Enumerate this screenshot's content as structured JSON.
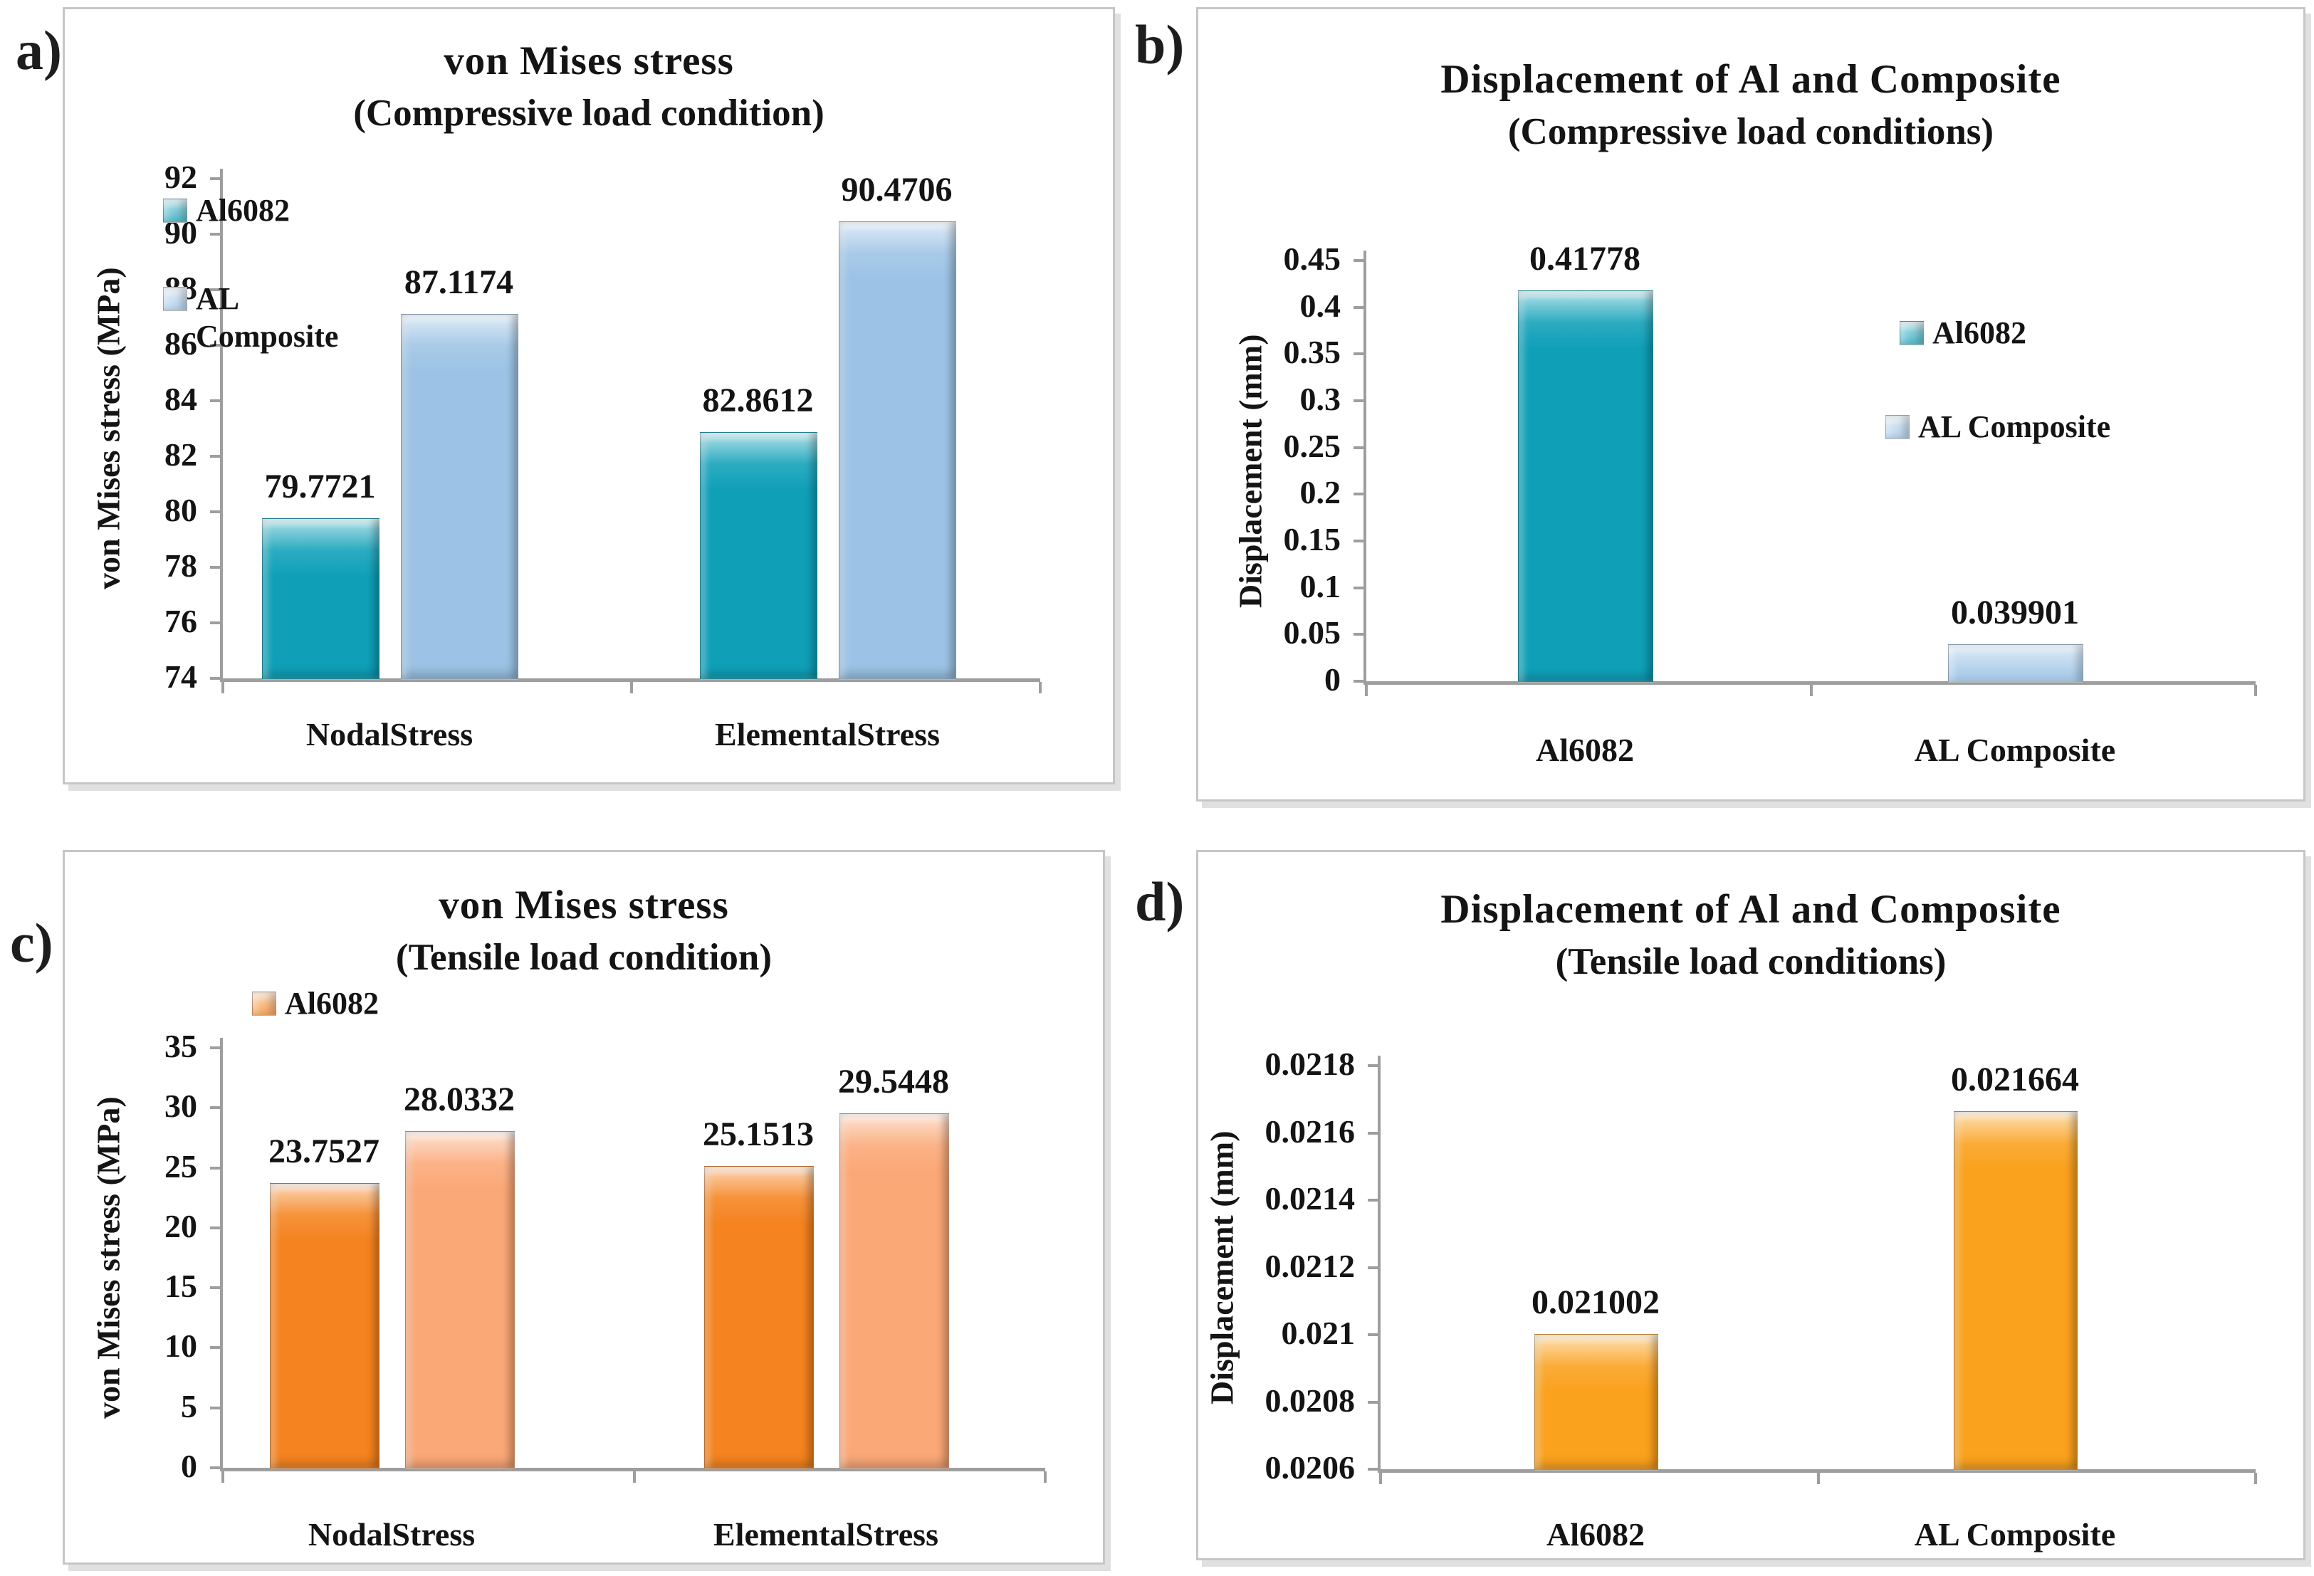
{
  "colors": {
    "teal": "#0FA0B8",
    "light_blue": "#9CC3E5",
    "orange_dark": "#F5831F",
    "orange_light": "#FBA877",
    "orange": "#FAA11D",
    "axis_gray": "#9E9E9E"
  },
  "chart_data": [
    {
      "panel_label": "a)",
      "type": "bar",
      "title": "von Mises stress",
      "subtitle": "(Compressive load condition)",
      "ylabel": "von Mises stress (MPa)",
      "xlabel": "",
      "ylim": [
        74,
        92
      ],
      "ytick_step": 2,
      "ytick_labels": [
        "74",
        "76",
        "78",
        "80",
        "82",
        "84",
        "86",
        "88",
        "90",
        "92"
      ],
      "grid": false,
      "categories": [
        "NodalStress",
        "ElementalStress"
      ],
      "series": [
        {
          "name": "Al6082",
          "color": "#0FA0B8",
          "values": [
            79.7721,
            82.8612
          ],
          "value_labels": [
            "79.7721",
            "82.8612"
          ]
        },
        {
          "name": "AL Composite",
          "color": "#9CC3E5",
          "values": [
            87.1174,
            90.4706
          ],
          "value_labels": [
            "87.1174",
            "90.4706"
          ]
        }
      ],
      "legend": [
        "Al6082",
        "AL Composite"
      ],
      "legend_position": "inside-top-left"
    },
    {
      "panel_label": "b)",
      "type": "bar",
      "title": "Displacement of Al and Composite",
      "subtitle": "(Compressive load conditions)",
      "ylabel": "Displacement (mm)",
      "xlabel": "",
      "ylim": [
        0,
        0.45
      ],
      "ytick_step": 0.05,
      "ytick_labels": [
        "0",
        "0.05",
        "0.1",
        "0.15",
        "0.2",
        "0.25",
        "0.3",
        "0.35",
        "0.4",
        "0.45"
      ],
      "grid": false,
      "categories": [
        "Al6082",
        "AL Composite"
      ],
      "bars": [
        {
          "category": "Al6082",
          "color": "#0FA0B8",
          "value": 0.41778,
          "value_label": "0.41778"
        },
        {
          "category": "AL Composite",
          "color": "#9CC3E5",
          "value": 0.039901,
          "value_label": "0.039901"
        }
      ],
      "legend": [
        "Al6082",
        "AL Composite"
      ],
      "legend_position": "inside-right"
    },
    {
      "panel_label": "c)",
      "type": "bar",
      "title": "von Mises stress",
      "subtitle": "(Tensile load condition)",
      "ylabel": "von Mises stress (MPa)",
      "xlabel": "",
      "ylim": [
        0,
        35
      ],
      "ytick_step": 5,
      "ytick_labels": [
        "0",
        "5",
        "10",
        "15",
        "20",
        "25",
        "30",
        "35"
      ],
      "grid": false,
      "categories": [
        "NodalStress",
        "ElementalStress"
      ],
      "series": [
        {
          "name": "Al6082",
          "color": "#F5831F",
          "values": [
            23.7527,
            25.1513
          ],
          "value_labels": [
            "23.7527",
            "25.1513"
          ]
        },
        {
          "name": "",
          "color": "#FBA877",
          "values": [
            28.0332,
            29.5448
          ],
          "value_labels": [
            "28.0332",
            "29.5448"
          ]
        }
      ],
      "legend": [
        "Al6082"
      ],
      "legend_position": "inside-top-left"
    },
    {
      "panel_label": "d)",
      "type": "bar",
      "title": "Displacement of Al and Composite",
      "subtitle": "(Tensile load conditions)",
      "ylabel": "Displacement (mm)",
      "xlabel": "",
      "ylim": [
        0.0206,
        0.0218
      ],
      "ytick_step": 0.0002,
      "ytick_labels": [
        "0.0206",
        "0.0208",
        "0.021",
        "0.0212",
        "0.0214",
        "0.0216",
        "0.0218"
      ],
      "grid": false,
      "categories": [
        "Al6082",
        "AL Composite"
      ],
      "bars": [
        {
          "category": "Al6082",
          "color": "#FAA11D",
          "value": 0.021002,
          "value_label": "0.021002"
        },
        {
          "category": "AL Composite",
          "color": "#FAA11D",
          "value": 0.021664,
          "value_label": "0.021664"
        }
      ],
      "legend": [],
      "legend_position": "none"
    }
  ]
}
